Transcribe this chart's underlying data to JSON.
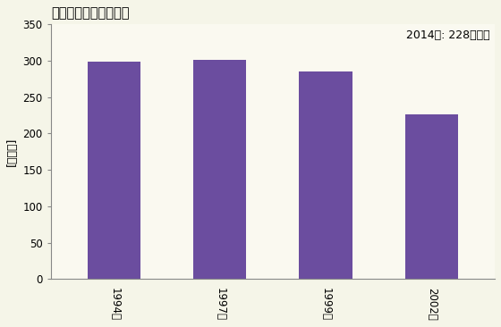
{
  "title": "商業の事業所数の推移",
  "ylabel": "[事業所]",
  "annotation": "2014年: 228事業所",
  "categories": [
    "1994年",
    "1997年",
    "1999年",
    "2002年"
  ],
  "values": [
    299,
    301,
    285,
    226
  ],
  "bar_color": "#6b4d9f",
  "ylim": [
    0,
    350
  ],
  "yticks": [
    0,
    50,
    100,
    150,
    200,
    250,
    300,
    350
  ],
  "background_color": "#f5f5e8",
  "plot_bg_color": "#faf9f0",
  "title_fontsize": 10.5,
  "label_fontsize": 9,
  "tick_fontsize": 8.5,
  "annotation_fontsize": 9
}
